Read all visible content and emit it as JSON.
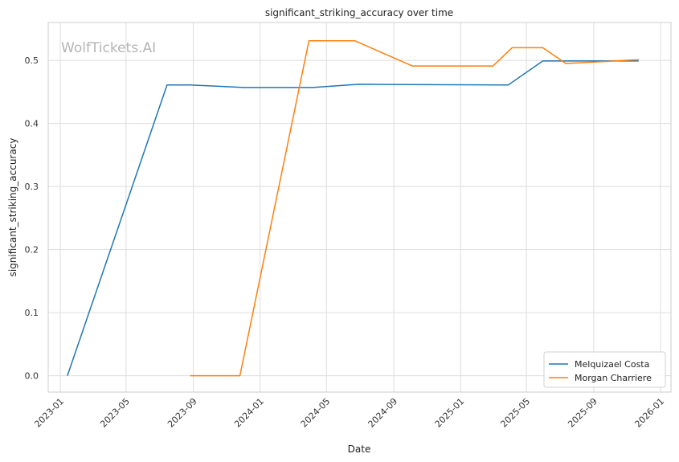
{
  "chart_data": {
    "type": "line",
    "title": "significant_striking_accuracy over time",
    "xlabel": "Date",
    "ylabel": "significant_striking_accuracy",
    "watermark": "WolfTickets.AI",
    "x_tick_labels": [
      "2023-01",
      "2023-05",
      "2023-09",
      "2024-01",
      "2024-05",
      "2024-09",
      "2025-01",
      "2025-05",
      "2025-09",
      "2026-01"
    ],
    "y_ticks": [
      0.0,
      0.1,
      0.2,
      0.3,
      0.4,
      0.5
    ],
    "y_tick_labels": [
      "0.0",
      "0.1",
      "0.2",
      "0.3",
      "0.4",
      "0.5"
    ],
    "xlim": [
      "2022-12-10",
      "2026-01-20"
    ],
    "ylim": [
      -0.026,
      0.56
    ],
    "grid": true,
    "legend_position": "lower-right",
    "series": [
      {
        "name": "Melquizael Costa",
        "color": "#1f77b4",
        "x": [
          "2023-01-14",
          "2023-07-15",
          "2023-08-26",
          "2023-12-02",
          "2024-04-06",
          "2024-06-29",
          "2025-03-29",
          "2025-05-31",
          "2025-11-22"
        ],
        "y": [
          0.0,
          0.461,
          0.461,
          0.457,
          0.457,
          0.462,
          0.461,
          0.499,
          0.499
        ]
      },
      {
        "name": "Morgan Charriere",
        "color": "#ff7f0e",
        "x": [
          "2023-08-26",
          "2023-11-25",
          "2024-03-30",
          "2024-06-22",
          "2024-10-05",
          "2025-03-01",
          "2025-04-05",
          "2025-05-31",
          "2025-07-12",
          "2025-11-22"
        ],
        "y": [
          0.0,
          0.0,
          0.531,
          0.531,
          0.491,
          0.491,
          0.52,
          0.52,
          0.495,
          0.501
        ]
      }
    ]
  }
}
